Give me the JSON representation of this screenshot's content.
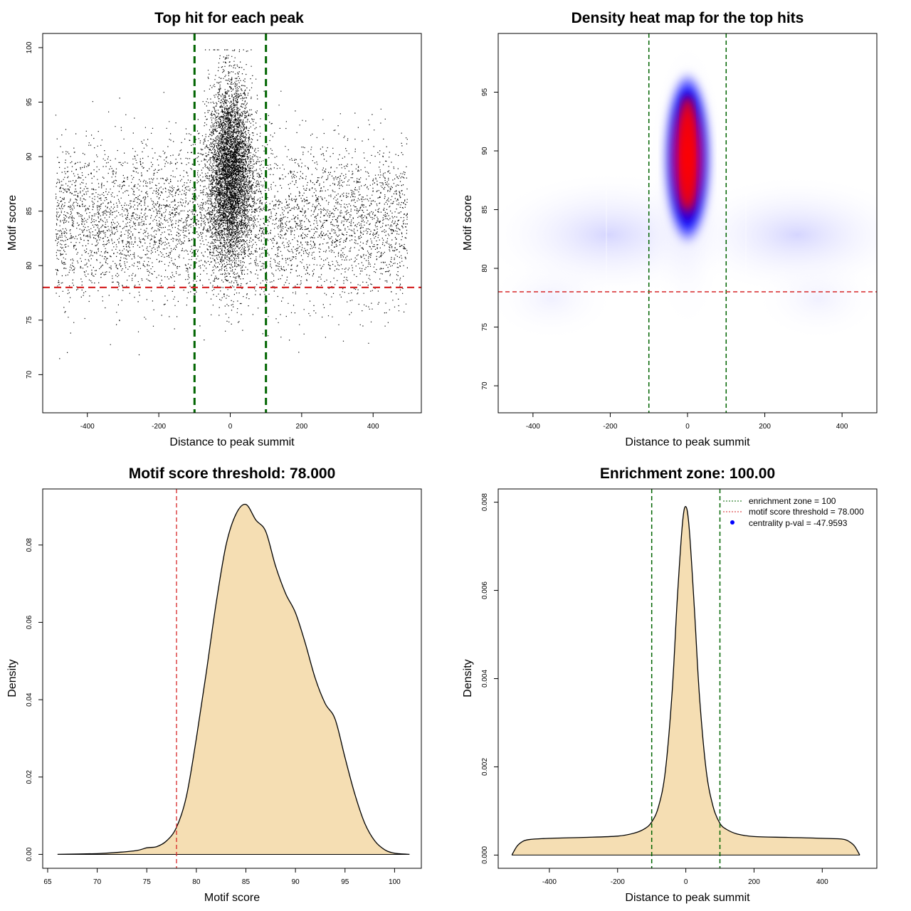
{
  "chart_data": [
    {
      "id": "scatter",
      "type": "scatter",
      "title": "Top hit for each peak",
      "xlabel": "Distance to peak summit",
      "ylabel": "Motif score",
      "xlim": [
        -525,
        535
      ],
      "ylim": [
        66.5,
        101.3
      ],
      "xticks": [
        -400,
        -200,
        0,
        200,
        400
      ],
      "yticks": [
        70,
        75,
        80,
        85,
        90,
        95,
        100
      ],
      "vlines": [
        -100,
        100
      ],
      "hline": 78,
      "grid": false,
      "colors": {
        "points": "#000000",
        "vlines": "#006400",
        "hline": "#d62728"
      },
      "point_model": {
        "background": {
          "n": 5200,
          "x_range": [
            -490,
            495
          ],
          "y_mean": 84,
          "y_sd": 3.6
        },
        "central": {
          "n": 9000,
          "x_mean": 0,
          "x_sd": 30,
          "y_mean": 88.5,
          "y_sd": 4.1
        },
        "note": "approximate cloud of ~14000 points"
      }
    },
    {
      "id": "heatmap",
      "type": "heatmap",
      "title": "Density heat map for the top hits",
      "xlabel": "Distance to peak summit",
      "ylabel": "Motif score",
      "xlim": [
        -490,
        490
      ],
      "ylim": [
        67.7,
        100
      ],
      "xticks": [
        -400,
        -200,
        0,
        200,
        400
      ],
      "yticks": [
        70,
        75,
        80,
        85,
        90,
        95
      ],
      "vlines": [
        -100,
        100
      ],
      "hline": 78,
      "colormap": [
        "#ffffff",
        "#0000ff",
        "#ff0000"
      ],
      "grid": false
    },
    {
      "id": "score_density",
      "type": "area",
      "title": "Motif score threshold: 78.000",
      "xlabel": "Motif score",
      "ylabel": "Density",
      "xlim": [
        64.5,
        102.7
      ],
      "ylim": [
        -0.0036,
        0.0945
      ],
      "xticks": [
        65,
        70,
        75,
        80,
        85,
        90,
        95,
        100
      ],
      "yticks": [
        0.0,
        0.02,
        0.04,
        0.06,
        0.08
      ],
      "ytick_labels": [
        "0.00",
        "0.02",
        "0.04",
        "0.06",
        "0.08"
      ],
      "vline": 78,
      "fill": "#f5deb3",
      "x": [
        66,
        70,
        72,
        74,
        75,
        76,
        77,
        78,
        79,
        80,
        81,
        82,
        83,
        84,
        85,
        86,
        87,
        88,
        89,
        90,
        91,
        92,
        93,
        94,
        95,
        96,
        97,
        98,
        99,
        100,
        101.5
      ],
      "y": [
        0.0,
        0.0002,
        0.0005,
        0.001,
        0.0017,
        0.002,
        0.0035,
        0.007,
        0.015,
        0.03,
        0.047,
        0.065,
        0.08,
        0.088,
        0.0905,
        0.0865,
        0.0835,
        0.0745,
        0.0675,
        0.0625,
        0.0545,
        0.0455,
        0.039,
        0.035,
        0.025,
        0.0155,
        0.008,
        0.0035,
        0.0012,
        0.0003,
        0.0
      ]
    },
    {
      "id": "distance_density",
      "type": "area",
      "title": "Enrichment zone: 100.00",
      "xlabel": "Distance to peak summit",
      "ylabel": "Density",
      "xlim": [
        -550,
        560
      ],
      "ylim": [
        -0.0003,
        0.0083
      ],
      "xticks": [
        -400,
        -200,
        0,
        200,
        400
      ],
      "yticks": [
        0.0,
        0.002,
        0.004,
        0.006,
        0.008
      ],
      "ytick_labels": [
        "0.000",
        "0.002",
        "0.004",
        "0.006",
        "0.008"
      ],
      "vlines": [
        -100,
        100
      ],
      "fill": "#f5deb3",
      "x": [
        -510,
        -495,
        -480,
        -460,
        -400,
        -300,
        -200,
        -150,
        -120,
        -100,
        -80,
        -60,
        -40,
        -25,
        -10,
        0,
        10,
        25,
        40,
        60,
        80,
        100,
        120,
        150,
        200,
        300,
        400,
        460,
        480,
        495,
        510
      ],
      "y": [
        0.0,
        0.0002,
        0.0003,
        0.00035,
        0.00038,
        0.0004,
        0.00043,
        0.0005,
        0.0006,
        0.00075,
        0.0011,
        0.0019,
        0.0037,
        0.0058,
        0.0075,
        0.0079,
        0.0074,
        0.0056,
        0.0036,
        0.0019,
        0.0011,
        0.00072,
        0.00058,
        0.00048,
        0.00042,
        0.0004,
        0.00038,
        0.00036,
        0.0003,
        0.0002,
        0.0
      ],
      "legend": {
        "position": "top-right",
        "entries": [
          {
            "label": "enrichment zone = 100",
            "style": "dotted",
            "color": "#006400"
          },
          {
            "label": "motif score threshold = 78.000",
            "style": "dotted",
            "color": "#d62728"
          },
          {
            "label": "centrality p-val = -47.9593",
            "style": "point",
            "color": "#0000ff"
          }
        ]
      }
    }
  ]
}
